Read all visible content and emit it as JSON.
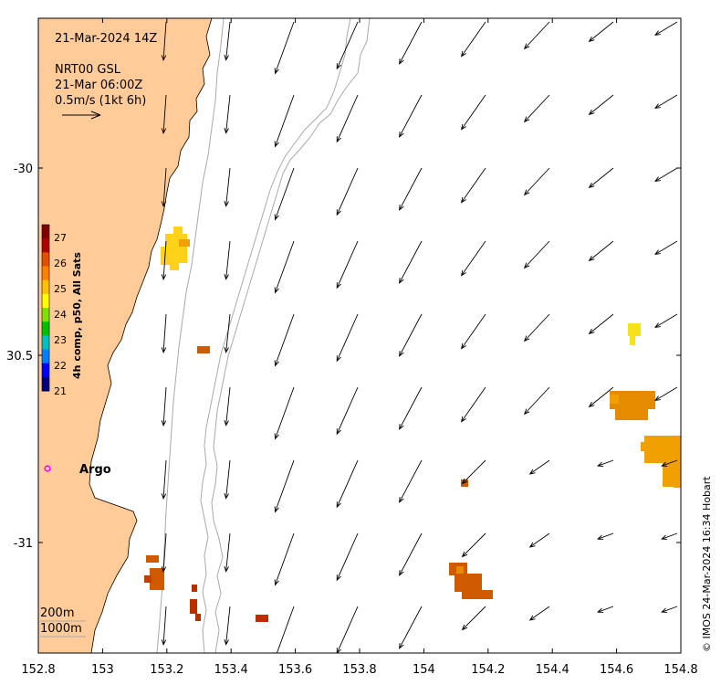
{
  "header": {
    "timestamp": "21-Mar-2024 14Z",
    "product": "NRT00 GSL",
    "current_time": "21-Mar 06:00Z",
    "scale_label": "0.5m/s (1kt 6h)"
  },
  "colorbar": {
    "title": "4h comp, p50, All Sats",
    "ticks": [
      "21",
      "22",
      "23",
      "24",
      "25",
      "26",
      "27"
    ],
    "range": [
      21,
      27.5
    ],
    "colors": [
      "#00007f",
      "#0000ff",
      "#0080ff",
      "#00c0c0",
      "#00c000",
      "#80e000",
      "#ffff00",
      "#ffc000",
      "#ff8000",
      "#e05000",
      "#b00000",
      "#800000"
    ]
  },
  "axes": {
    "x_ticks": [
      "152.8",
      "153",
      "153.2",
      "153.4",
      "153.6",
      "153.8",
      "154",
      "154.2",
      "154.4",
      "154.6",
      "154.8"
    ],
    "y_ticks": [
      "-30",
      "30.5",
      "-31"
    ],
    "lon_range": [
      152.8,
      154.8
    ],
    "lat_range": [
      -29.58,
      -31.3
    ]
  },
  "markers": {
    "argo_label": "Argo",
    "argo_color": "#ff00ff"
  },
  "contours": {
    "label_200": "200m",
    "label_1000": "1000m"
  },
  "credit": "© IMOS 24-Mar-2024 16:34 Hobart",
  "colors": {
    "land": "#ffcc99",
    "isobath": "#aaaaaa"
  }
}
